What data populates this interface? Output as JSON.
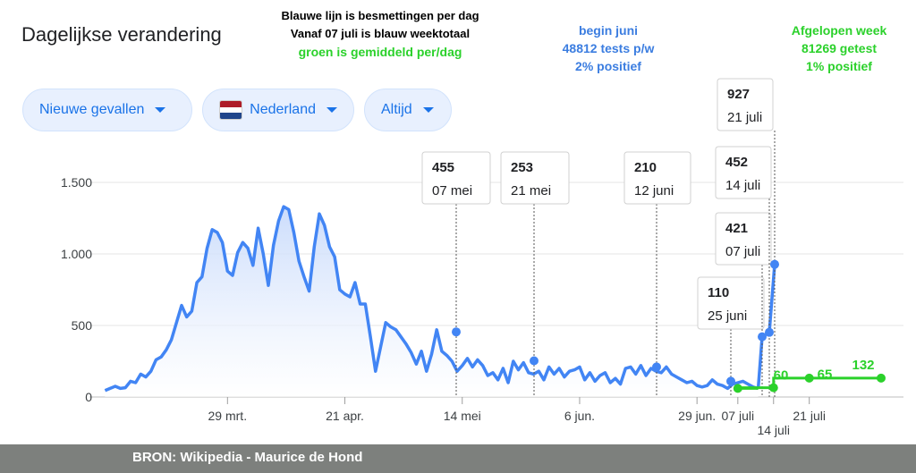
{
  "header": {
    "title": "Dagelijkse verandering"
  },
  "notes": {
    "line1": "Blauwe lijn is besmettingen per dag",
    "line2": "Vanaf 07 juli is blauw weektotaal",
    "line3": "groen is gemiddeld per/dag",
    "june_head": "begin juni",
    "june_tests": "48812 tests p/w",
    "june_pct": "2% positief",
    "week_head": "Afgelopen week",
    "week_tests": "81269 getest",
    "week_pct": "1% positief"
  },
  "filters": {
    "metric": "Nieuwe gevallen",
    "country": "Nederland",
    "range": "Altijd"
  },
  "colors": {
    "blue": "#4285f4",
    "green": "#2bd12b",
    "flag_red": "#ae1c28",
    "flag_white": "#ffffff",
    "flag_blue": "#21468b"
  },
  "footer": {
    "text": "BRON: Wikipedia   -  Maurice de Hond"
  },
  "chart_data": {
    "type": "line",
    "title": "",
    "xlabel": "",
    "ylabel": "",
    "ylim": [
      0,
      1700
    ],
    "yticks": [
      0,
      500,
      1000,
      1500
    ],
    "ytick_labels": [
      "0",
      "500",
      "1.000",
      "1.500"
    ],
    "xtick_labels": [
      "29 mrt.",
      "21 apr.",
      "14 mei",
      "6 jun.",
      "29 jun.",
      "07 juli",
      "14 juli",
      "21 juli"
    ],
    "series": [
      {
        "color": "blue",
        "start_date": "2020-03-05",
        "values": [
          45,
          60,
          75,
          60,
          65,
          110,
          100,
          160,
          140,
          180,
          260,
          280,
          330,
          400,
          520,
          640,
          560,
          600,
          800,
          840,
          1040,
          1170,
          1150,
          1080,
          880,
          850,
          1010,
          1080,
          1040,
          920,
          1180,
          1000,
          780,
          1060,
          1230,
          1330,
          1310,
          1150,
          950,
          840,
          740,
          1050,
          1280,
          1200,
          1050,
          980,
          750,
          720,
          700,
          800,
          650,
          650,
          420,
          180,
          350,
          520,
          490,
          470,
          420,
          370,
          310,
          230,
          320,
          180,
          300,
          470,
          320,
          290,
          250,
          180,
          220,
          270,
          210,
          260,
          220,
          150,
          170,
          120,
          200,
          100,
          250,
          190,
          240,
          170,
          160,
          180,
          120,
          210,
          160,
          200,
          140,
          180,
          190,
          210,
          120,
          170,
          110,
          150,
          170,
          100,
          130,
          90,
          200,
          210,
          160,
          220,
          150,
          200,
          180,
          170,
          210,
          160,
          140,
          120,
          100,
          110,
          80,
          70,
          80,
          120,
          90,
          80,
          60,
          90,
          100,
          110,
          90,
          70,
          60
        ],
        "weekly_points": [
          {
            "date": "07 juli",
            "value": 421
          },
          {
            "date": "14 juli",
            "value": 452
          },
          {
            "date": "21 juli",
            "value": 927
          }
        ]
      },
      {
        "color": "green",
        "points": [
          {
            "date": "07 juli",
            "value": 60
          },
          {
            "date": "14 juli",
            "value": 65
          },
          {
            "date": "21 juli",
            "value": 132
          }
        ]
      }
    ],
    "annotations": [
      {
        "value": "455",
        "date": "07 mei"
      },
      {
        "value": "253",
        "date": "21 mei"
      },
      {
        "value": "210",
        "date": "12 juni"
      },
      {
        "value": "110",
        "date": "25 juni"
      },
      {
        "value": "421",
        "date": "07 juli"
      },
      {
        "value": "452",
        "date": "14 juli"
      },
      {
        "value": "927",
        "date": "21 juli"
      }
    ],
    "grid": true,
    "legend": "none"
  }
}
